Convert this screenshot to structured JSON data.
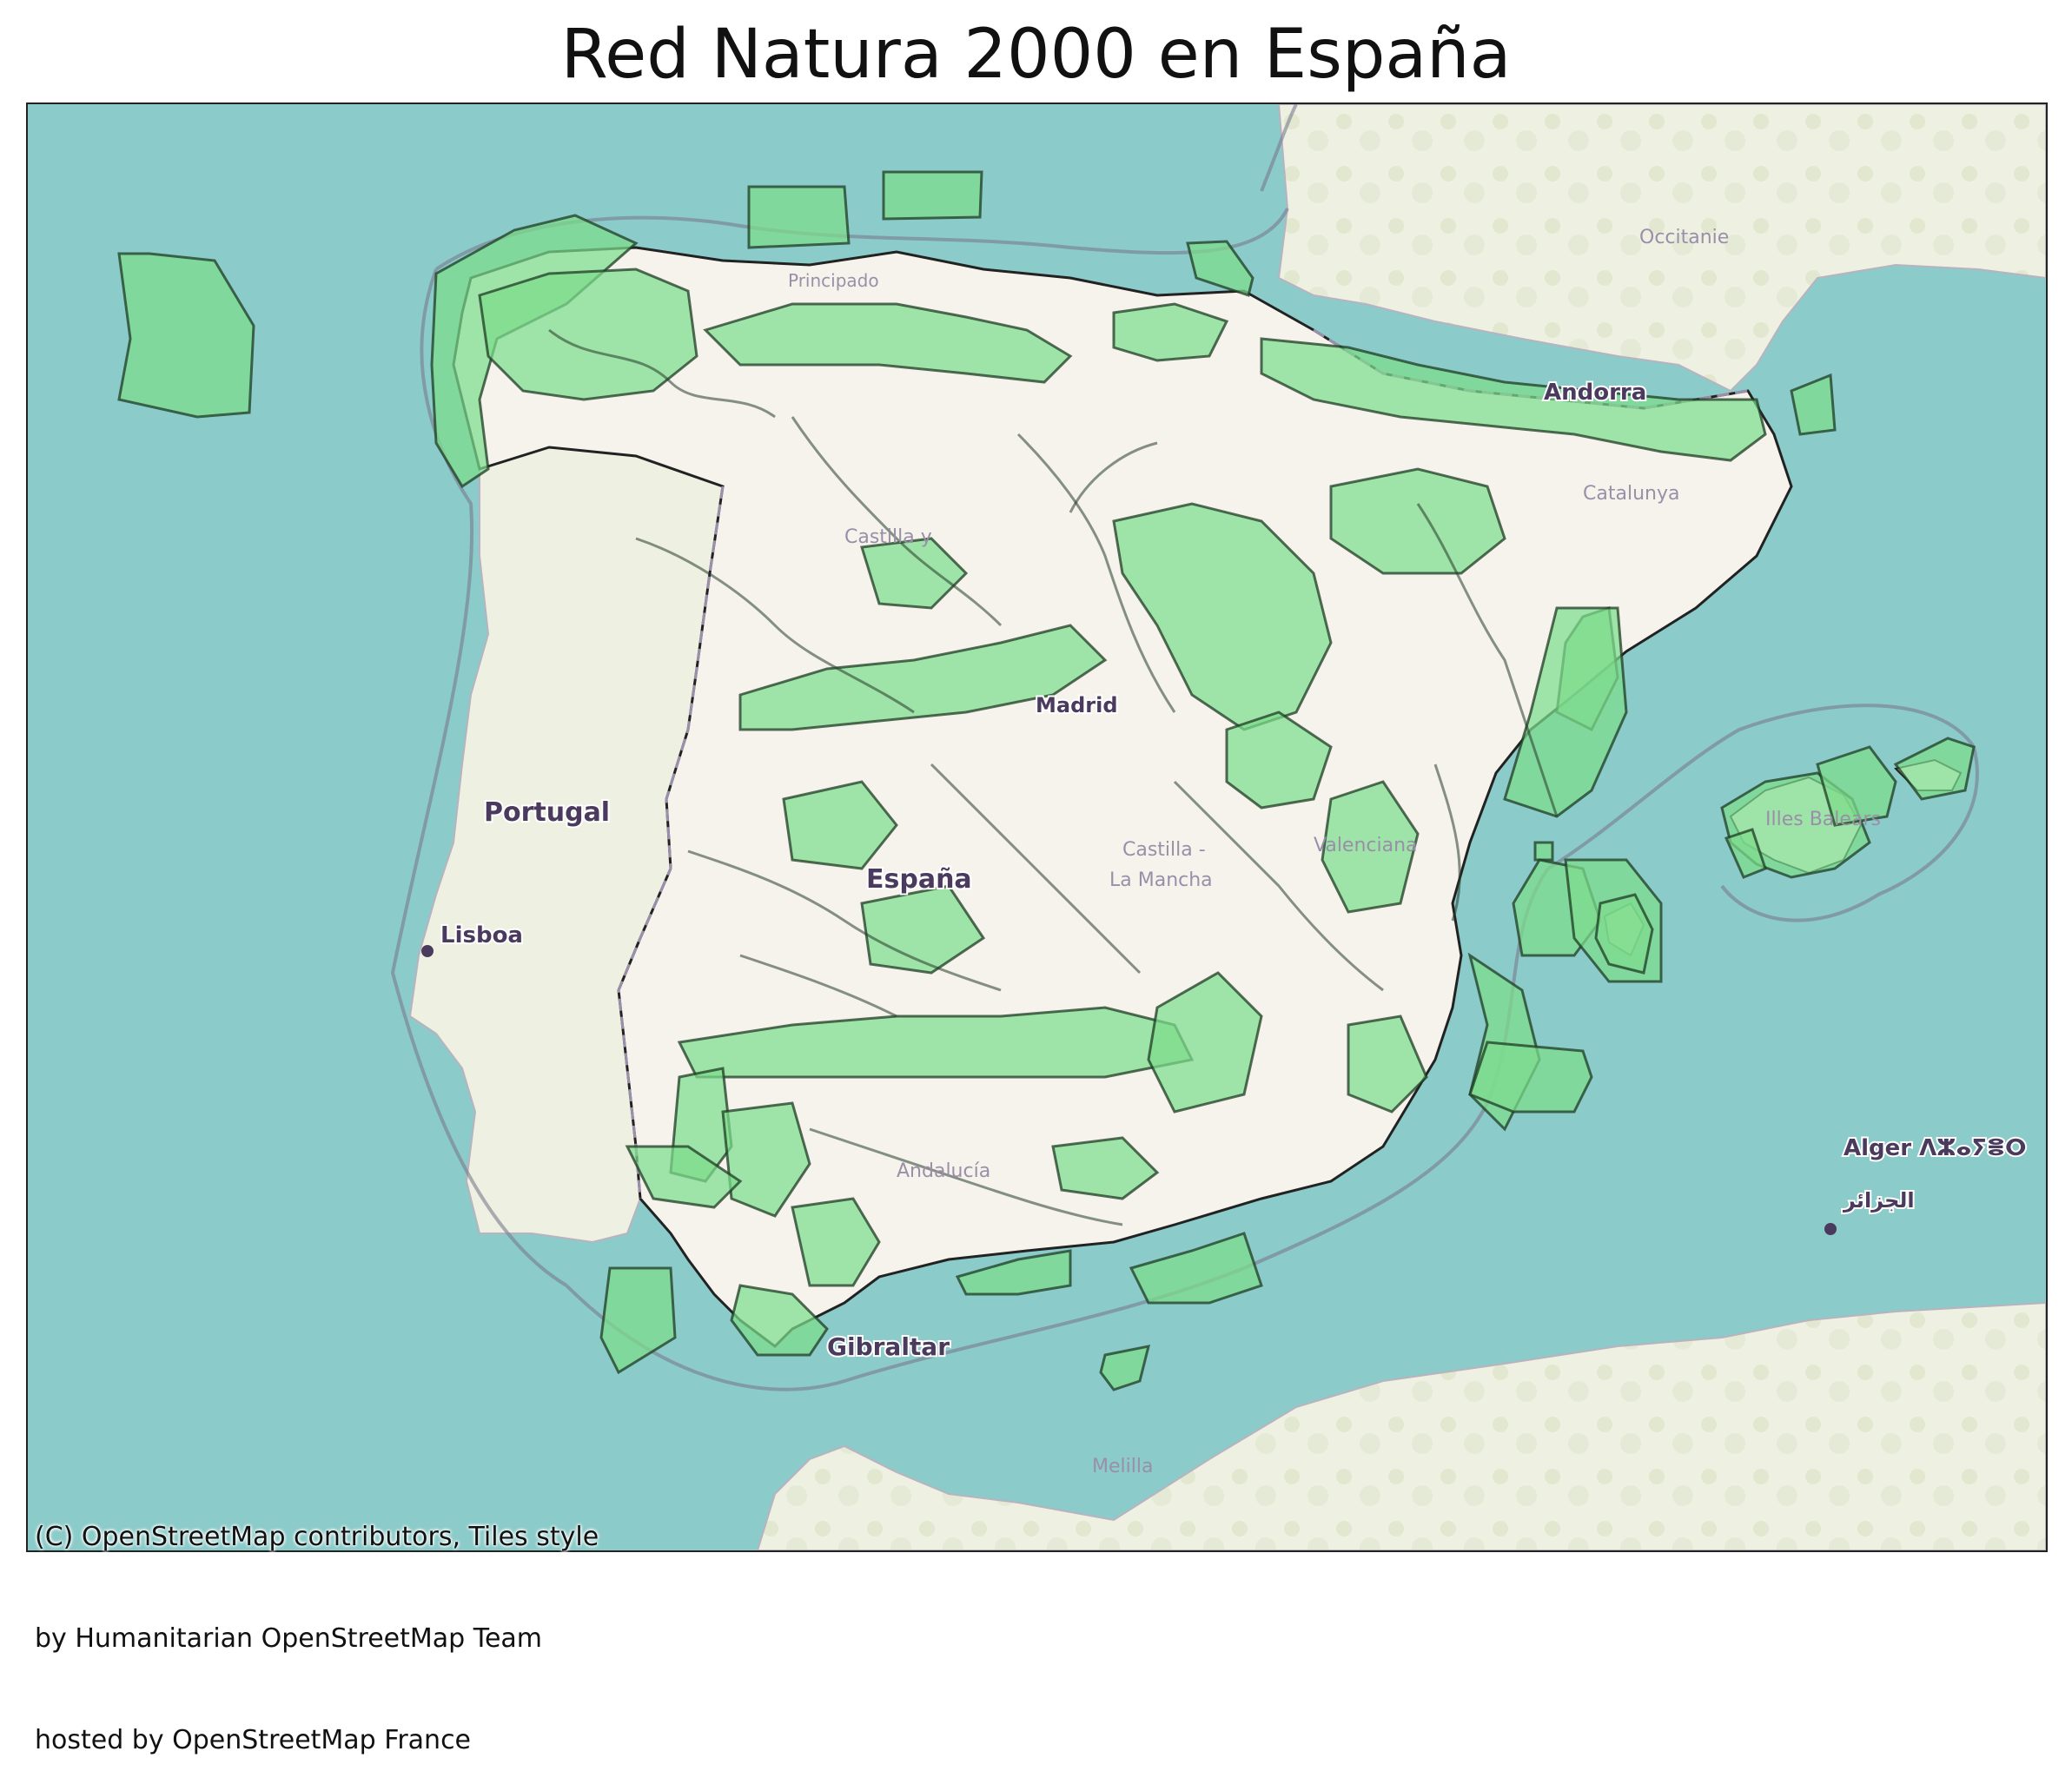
{
  "title": "Red Natura 2000 en España",
  "map": {
    "basemap": "OpenStreetMap Humanitarian",
    "colors": {
      "sea": "#8bcbc9",
      "land": "#f2f0e8",
      "protected_fill": "#7ddc8c",
      "protected_stroke": "#1d3b23",
      "border": "#8a8094"
    },
    "labels": {
      "portugal": "Portugal",
      "lisboa": "Lisboa",
      "espana": "España",
      "andorra": "Andorra",
      "madrid": "Madrid",
      "occitanie": "Occitanie",
      "alger": "Alger ⴷⵣⴰⵢⴻⵔ",
      "alger_ar": "الجزائر",
      "gibraltar": "Gibraltar",
      "melilla": "Melilla",
      "castilla_y_leon": "Castilla y",
      "castilla_la_mancha_1": "Castilla -",
      "castilla_la_mancha_2": "La Mancha",
      "andalucia": "Andalucía",
      "catalunya": "Catalunya",
      "valenciana": "Valenciana",
      "illes_balears": "Illes Balears",
      "asturias": "Principado"
    }
  },
  "attribution": {
    "line1": "(C) OpenStreetMap contributors, Tiles style",
    "line2": "by Humanitarian OpenStreetMap Team",
    "line3": "hosted by OpenStreetMap France"
  }
}
